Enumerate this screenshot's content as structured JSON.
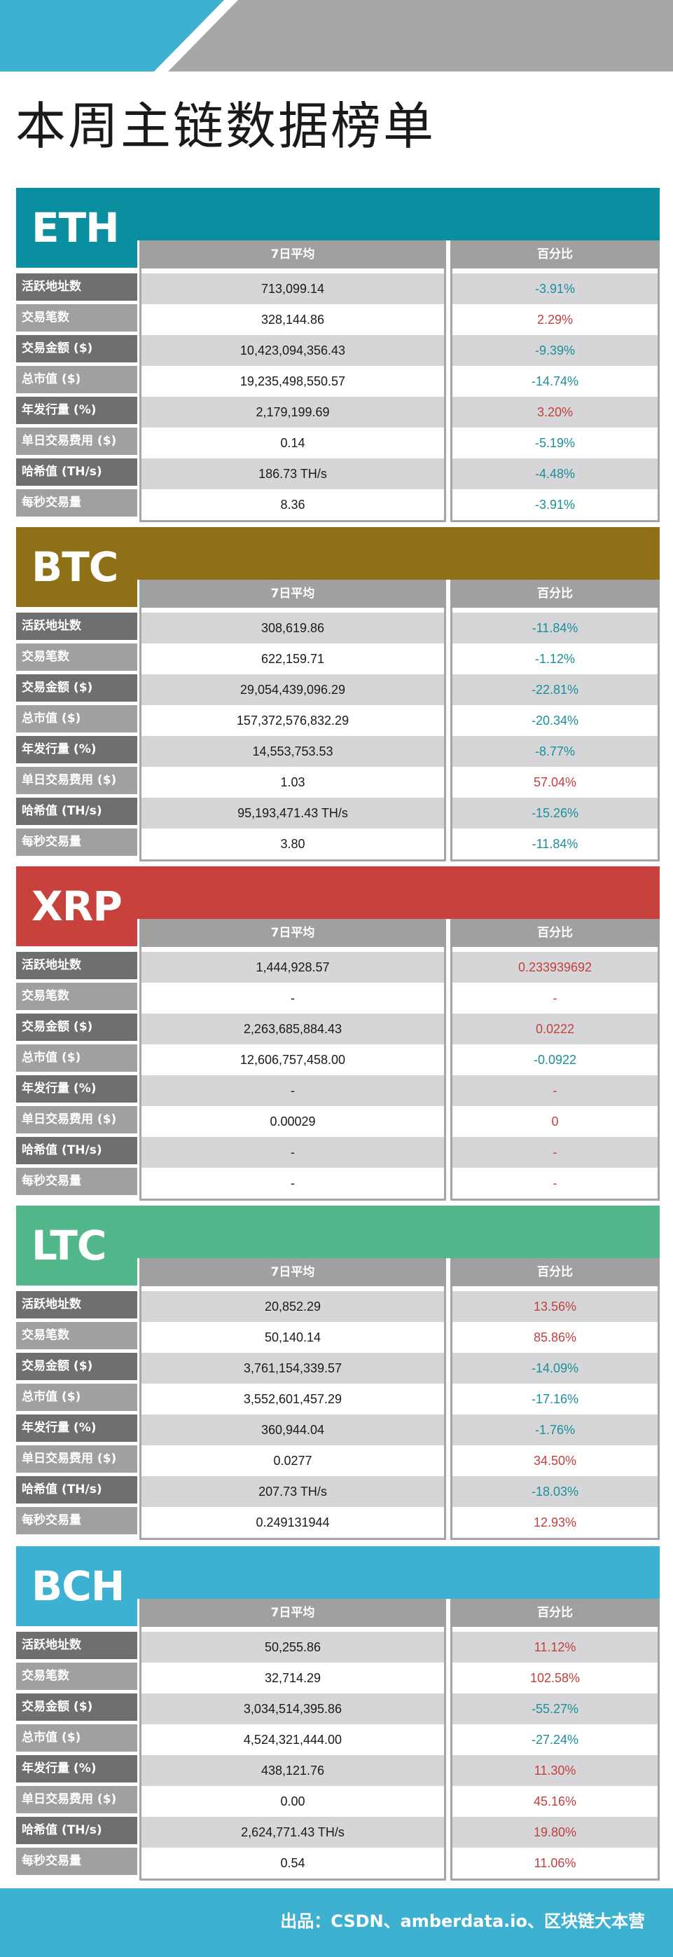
{
  "banner": {
    "colors": {
      "blue": "#3db1d2",
      "grey": "#a7a7a7"
    }
  },
  "title": "本周主链数据榜单",
  "columns": {
    "avg": "7日平均",
    "pct": "百分比"
  },
  "row_labels": [
    "活跃地址数",
    "交易笔数",
    "交易金额 ($)",
    "总市值 ($)",
    "年发行量 (%)",
    "单日交易费用 ($)",
    "哈希值 (TH/s)",
    "每秒交易量"
  ],
  "colors": {
    "negative": "#1a8f99",
    "positive": "#c0413f",
    "label_dark": "#6f6f71",
    "label_light": "#a0a0a2",
    "header_grey": "#a0a0a0",
    "row_shade": "#d6d6d8"
  },
  "sections": [
    {
      "coin": "ETH",
      "color": "#0a8fa0",
      "avg": [
        "713,099.14",
        "328,144.86",
        "10,423,094,356.43",
        "19,235,498,550.57",
        "2,179,199.69",
        "0.14",
        "186.73 TH/s",
        "8.36"
      ],
      "pct": [
        "-3.91%",
        "2.29%",
        "-9.39%",
        "-14.74%",
        "3.20%",
        "-5.19%",
        "-4.48%",
        "-3.91%"
      ],
      "pct_sign": [
        "neg",
        "pos",
        "neg",
        "neg",
        "pos",
        "neg",
        "neg",
        "neg"
      ]
    },
    {
      "coin": "BTC",
      "color": "#8e7016",
      "avg": [
        "308,619.86",
        "622,159.71",
        "29,054,439,096.29",
        "157,372,576,832.29",
        "14,553,753.53",
        "1.03",
        "95,193,471.43 TH/s",
        "3.80"
      ],
      "pct": [
        "-11.84%",
        "-1.12%",
        "-22.81%",
        "-20.34%",
        "-8.77%",
        "57.04%",
        "-15.26%",
        "-11.84%"
      ],
      "pct_sign": [
        "neg",
        "neg",
        "neg",
        "neg",
        "neg",
        "pos",
        "neg",
        "neg"
      ]
    },
    {
      "coin": "XRP",
      "color": "#c9413c",
      "avg": [
        "1,444,928.57",
        "-",
        "2,263,685,884.43",
        "12,606,757,458.00",
        "-",
        "0.00029",
        "-",
        "-"
      ],
      "pct": [
        "0.233939692",
        "-",
        "0.0222",
        "-0.0922",
        "-",
        "0",
        "-",
        "-"
      ],
      "pct_sign": [
        "pos",
        "pos",
        "pos",
        "neg",
        "pos",
        "pos",
        "pos",
        "pos"
      ]
    },
    {
      "coin": "LTC",
      "color": "#52b78b",
      "avg": [
        "20,852.29",
        "50,140.14",
        "3,761,154,339.57",
        "3,552,601,457.29",
        "360,944.04",
        "0.0277",
        "207.73 TH/s",
        "0.249131944"
      ],
      "pct": [
        "13.56%",
        "85.86%",
        "-14.09%",
        "-17.16%",
        "-1.76%",
        "34.50%",
        "-18.03%",
        "12.93%"
      ],
      "pct_sign": [
        "pos",
        "pos",
        "neg",
        "neg",
        "neg",
        "pos",
        "neg",
        "pos"
      ]
    },
    {
      "coin": "BCH",
      "color": "#3db1d2",
      "avg": [
        "50,255.86",
        "32,714.29",
        "3,034,514,395.86",
        "4,524,321,444.00",
        "438,121.76",
        "0.00",
        "2,624,771.43 TH/s",
        "0.54"
      ],
      "pct": [
        "11.12%",
        "102.58%",
        "-55.27%",
        "-27.24%",
        "11.30%",
        "45.16%",
        "19.80%",
        "11.06%"
      ],
      "pct_sign": [
        "pos",
        "pos",
        "neg",
        "neg",
        "pos",
        "pos",
        "pos",
        "pos"
      ]
    }
  ],
  "footer": {
    "text": "出品：CSDN、amberdata.io、区块链大本营",
    "color": "#3eb0d0"
  }
}
